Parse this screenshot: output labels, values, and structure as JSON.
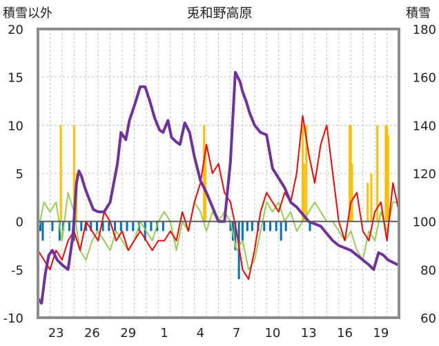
{
  "chart_data": {
    "type": "line",
    "title": "兎和野高原",
    "ylabel_left": "積雪以外",
    "ylabel_right": "積雪",
    "ylim_left": [
      -10,
      20
    ],
    "ylim_right": [
      60,
      180
    ],
    "yticks_left": [
      "20",
      "15",
      "10",
      "5",
      "0",
      "-5",
      "-10"
    ],
    "yticks_right": [
      "180",
      "160",
      "140",
      "120",
      "100",
      "80",
      "60"
    ],
    "xlim": [
      0,
      30
    ],
    "xticks": [
      {
        "day": 1.5,
        "label": "23"
      },
      {
        "day": 4.5,
        "label": "26"
      },
      {
        "day": 7.5,
        "label": "29"
      },
      {
        "day": 10.5,
        "label": "1"
      },
      {
        "day": 13.5,
        "label": "4"
      },
      {
        "day": 16.5,
        "label": "7"
      },
      {
        "day": 19.5,
        "label": "10"
      },
      {
        "day": 22.5,
        "label": "13"
      },
      {
        "day": 25.5,
        "label": "16"
      },
      {
        "day": 28.5,
        "label": "19"
      }
    ],
    "grid": true,
    "colors": {
      "snow_depth": "#7030a0",
      "temp_max": "#ff0000",
      "temp_min": "#92d050",
      "precip": "#ffc000",
      "snow_change": "#0070c0"
    },
    "series": [
      {
        "key": "snow_depth",
        "axis": "right",
        "x": [
          0,
          0.3,
          0.6,
          0.9,
          1.2,
          1.6,
          2.0,
          2.5,
          2.9,
          3.2,
          3.4,
          3.6,
          3.9,
          4.2,
          4.6,
          5.0,
          5.5,
          6.0,
          6.6,
          6.9,
          7.3,
          7.6,
          8.0,
          8.5,
          8.9,
          9.3,
          9.7,
          10.1,
          10.4,
          10.8,
          11.1,
          11.5,
          11.8,
          12.2,
          12.6,
          13.0,
          13.5,
          14.0,
          14.5,
          15.0,
          15.5,
          16.0,
          16.4,
          16.8,
          17.0,
          17.3,
          17.6,
          18.0,
          18.5,
          19.0,
          19.5,
          20.0,
          20.5,
          21.0,
          21.5,
          22.0,
          22.5,
          23.0,
          23.5,
          24.0,
          24.5,
          25.0,
          25.5,
          26.0,
          26.5,
          27.0,
          27.5,
          27.9,
          28.3,
          28.7,
          29.1,
          29.5,
          29.9
        ],
        "values": [
          68,
          66,
          78,
          86,
          88,
          84,
          82,
          80,
          94,
          116,
          121,
          119,
          114,
          110,
          105,
          104,
          104,
          108,
          124,
          137,
          134,
          142,
          148,
          156,
          156,
          150,
          143,
          138,
          137,
          142,
          135,
          133,
          132,
          141,
          137,
          127,
          117,
          112,
          106,
          100,
          100,
          125,
          162,
          158,
          154,
          150,
          145,
          140,
          137,
          136,
          122,
          118,
          114,
          108,
          106,
          103,
          100,
          99,
          98,
          95,
          92,
          90,
          89,
          88,
          86,
          84,
          82,
          80,
          87,
          86,
          84,
          83,
          82
        ]
      },
      {
        "key": "temp_max",
        "axis": "left",
        "x": [
          0,
          0.5,
          1.0,
          1.5,
          2.0,
          2.5,
          3.0,
          3.5,
          4.0,
          4.5,
          5.0,
          5.5,
          6.0,
          6.5,
          7.0,
          7.5,
          8.0,
          8.5,
          9.0,
          9.5,
          10.0,
          10.5,
          11.0,
          11.5,
          12.0,
          12.5,
          13.0,
          13.5,
          14.0,
          14.5,
          15.0,
          15.5,
          16.0,
          16.5,
          17.0,
          17.5,
          18.0,
          18.5,
          19.0,
          19.5,
          20.0,
          20.5,
          21.0,
          21.5,
          22.0,
          22.5,
          23.0,
          23.5,
          24.0,
          24.5,
          25.0,
          25.5,
          26.0,
          26.5,
          27.0,
          27.5,
          28.0,
          28.5,
          29.0,
          29.5,
          30.0
        ],
        "values": [
          -3,
          -4,
          -5,
          -3,
          -4,
          -2,
          -1,
          -3,
          0,
          -1,
          -2,
          1,
          0,
          -2,
          -1,
          -3,
          -2,
          -1,
          -2,
          -3,
          -2,
          -2,
          -1,
          -2,
          1,
          -1,
          2,
          4,
          8,
          5,
          6,
          3,
          2,
          -1,
          -5,
          -6,
          -3,
          1,
          3,
          2,
          1,
          3,
          2,
          5,
          11,
          7,
          4,
          8,
          10,
          5,
          0,
          -2,
          2,
          3,
          -1,
          -2,
          1,
          2,
          -2,
          4,
          1
        ]
      },
      {
        "key": "temp_min",
        "axis": "left",
        "x": [
          0,
          0.5,
          1.0,
          1.5,
          2.0,
          2.5,
          3.0,
          3.5,
          4.0,
          4.5,
          5.0,
          5.5,
          6.0,
          6.5,
          7.0,
          7.5,
          8.0,
          8.5,
          9.0,
          9.5,
          10.0,
          10.5,
          11.0,
          11.5,
          12.0,
          12.5,
          13.0,
          13.5,
          14.0,
          14.5,
          15.0,
          15.5,
          16.0,
          16.5,
          17.0,
          17.5,
          18.0,
          18.5,
          19.0,
          19.5,
          20.0,
          20.5,
          21.0,
          21.5,
          22.0,
          22.5,
          23.0,
          23.5,
          24.0,
          24.5,
          25.0,
          25.5,
          26.0,
          26.5,
          27.0,
          27.5,
          28.0,
          28.5,
          29.0,
          29.5,
          30.0
        ],
        "values": [
          -1,
          2,
          1,
          2,
          -2,
          3,
          1,
          -3,
          -4,
          -2,
          -1,
          -2,
          -3,
          -1,
          -2,
          -3,
          -2,
          0,
          -1,
          -2,
          0,
          1,
          0,
          -3,
          0,
          -1,
          2,
          1,
          -1,
          1,
          0,
          1,
          0,
          -3,
          -2,
          -5,
          -4,
          -1,
          2,
          1,
          2,
          0,
          1,
          -1,
          0,
          1,
          2,
          1,
          0,
          0,
          -1,
          -2,
          -1,
          -3,
          -4,
          -1,
          -2,
          1,
          -1,
          2,
          2
        ]
      },
      {
        "key": "precip",
        "axis": "left",
        "kind": "bars",
        "x": [
          1.9,
          3.0,
          3.2,
          13.8,
          13.9,
          22.0,
          22.1,
          22.3,
          25.9,
          26.0,
          26.1,
          27.4,
          27.7,
          28.2,
          28.9,
          29.0,
          29.1
        ],
        "values": [
          10,
          10,
          5,
          10,
          8,
          10,
          6,
          10,
          10,
          10,
          6,
          4,
          5,
          10,
          10,
          10,
          9
        ]
      },
      {
        "key": "snow_change",
        "axis": "left",
        "kind": "bars",
        "x": [
          0.2,
          0.4,
          1.2,
          1.8,
          2.1,
          2.6,
          3.0,
          3.6,
          4.0,
          4.4,
          4.9,
          5.4,
          5.9,
          6.4,
          6.9,
          7.4,
          7.9,
          8.4,
          8.9,
          9.4,
          9.9,
          10.4,
          16.0,
          16.2,
          16.4,
          16.7,
          17.0,
          17.4,
          17.8,
          18.3,
          18.8,
          19.3,
          19.8,
          20.2,
          20.6,
          22.6
        ],
        "values": [
          -1,
          -2,
          -1,
          -2,
          -1,
          -1,
          -2,
          -1,
          -1,
          -1,
          -1,
          -1,
          -1,
          -1,
          -1,
          -1,
          -1,
          -1,
          -2,
          -1,
          -1,
          -1,
          -1,
          -2,
          -3,
          -6,
          -2,
          -1,
          -1,
          -1,
          -1,
          -1,
          -1,
          -2,
          -1,
          -1
        ]
      }
    ]
  }
}
